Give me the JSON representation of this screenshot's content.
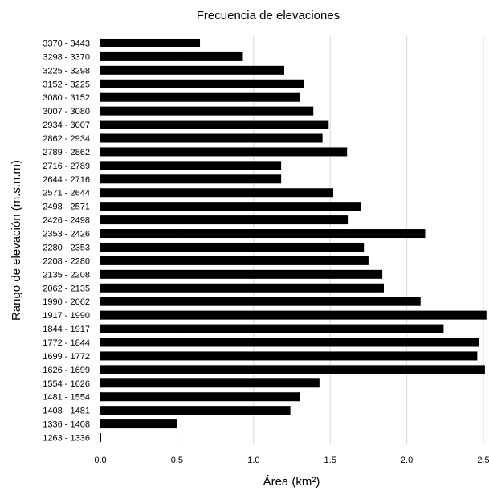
{
  "chart_data": {
    "type": "bar",
    "orientation": "horizontal",
    "title": "Frecuencia de elevaciones",
    "xlabel": "Área (km²)",
    "ylabel": "Rango de elevación (m.s.n.m)",
    "xlim": [
      0,
      2.5
    ],
    "xticks": [
      "0.0",
      "0.5",
      "1.0",
      "1.5",
      "2.0",
      "2.5"
    ],
    "grid": "vertical",
    "legend": "none",
    "bar_color": "#000000",
    "categories": [
      "1263 - 1336",
      "1336 - 1408",
      "1408 - 1481",
      "1481 - 1554",
      "1554 - 1626",
      "1626 - 1699",
      "1699 - 1772",
      "1772 - 1844",
      "1844 - 1917",
      "1917 - 1990",
      "1990 - 2062",
      "2062 - 2135",
      "2135 - 2208",
      "2208 - 2280",
      "2280 - 2353",
      "2353 - 2426",
      "2426 - 2498",
      "2498 - 2571",
      "2571 - 2644",
      "2644 - 2716",
      "2716 - 2789",
      "2789 - 2862",
      "2862 - 2934",
      "2934 - 3007",
      "3007 - 3080",
      "3080 - 3152",
      "3152 - 3225",
      "3225 - 3298",
      "3298 - 3370",
      "3370 - 3443"
    ],
    "values": [
      0.005,
      0.5,
      1.24,
      1.3,
      1.43,
      2.51,
      2.46,
      2.47,
      2.24,
      2.52,
      2.09,
      1.85,
      1.84,
      1.75,
      1.72,
      2.12,
      1.62,
      1.7,
      1.52,
      1.18,
      1.18,
      1.61,
      1.45,
      1.49,
      1.39,
      1.3,
      1.33,
      1.2,
      0.93,
      0.65
    ]
  }
}
